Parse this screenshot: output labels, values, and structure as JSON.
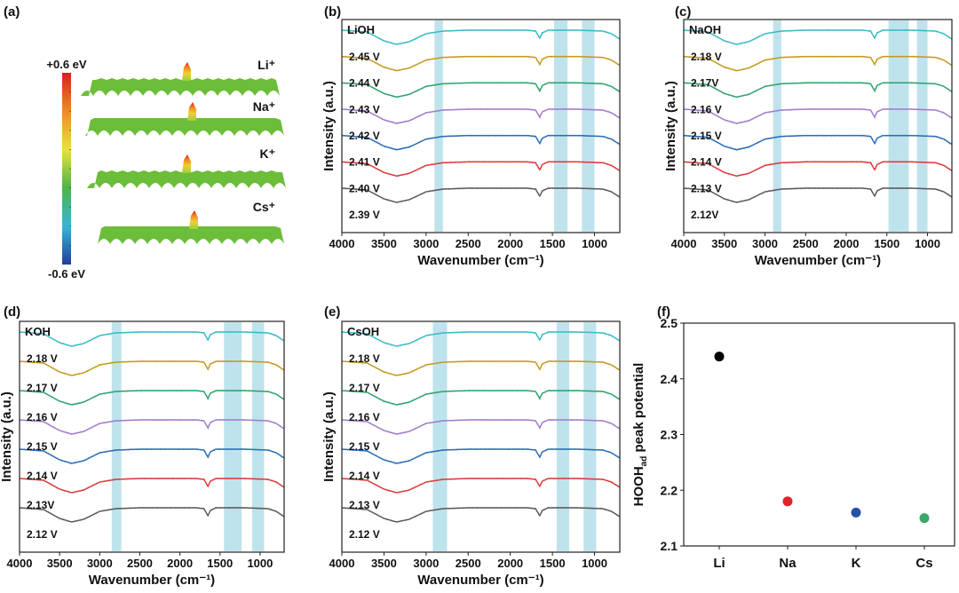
{
  "chart_data": [
    {
      "panel": "(a)",
      "type": "surface",
      "colorbar": {
        "max_label": "+0.6 eV",
        "min_label": "-0.6 eV",
        "colors": [
          "#1e3f9c",
          "#38b6d6",
          "#4cb648",
          "#e8e23a",
          "#f08a22",
          "#d9201f"
        ]
      },
      "series": [
        {
          "name": "Li",
          "label": "Li⁺"
        },
        {
          "name": "Na",
          "label": "Na⁺"
        },
        {
          "name": "K",
          "label": "K⁺"
        },
        {
          "name": "Cs",
          "label": "Cs⁺"
        }
      ]
    },
    {
      "panel": "(b)",
      "type": "line",
      "title": "LiOH",
      "xlabel": "Wavenumber (cm⁻¹)",
      "ylabel": "Intensity (a.u.)",
      "xlim": [
        4000,
        700
      ],
      "xticks": [
        "4000",
        "3500",
        "3000",
        "2500",
        "2000",
        "1500",
        "1000"
      ],
      "bands": [
        [
          2900,
          2800
        ],
        [
          1480,
          1320
        ],
        [
          1150,
          1000
        ]
      ],
      "series": [
        "2.39 V",
        "2.40 V",
        "2.41 V",
        "2.42 V",
        "2.43 V",
        "2.44 V",
        "2.45 V"
      ]
    },
    {
      "panel": "(c)",
      "type": "line",
      "title": "NaOH",
      "xlabel": "Wavenumber (cm⁻¹)",
      "ylabel": "Intensity (a.u.)",
      "xlim": [
        4000,
        700
      ],
      "xticks": [
        "4000",
        "3500",
        "3000",
        "2500",
        "2000",
        "1500",
        "1000"
      ],
      "bands": [
        [
          2900,
          2800
        ],
        [
          1480,
          1230
        ],
        [
          1130,
          1000
        ]
      ],
      "series": [
        "2.12V",
        "2.13 V",
        "2.14 V",
        "2.15 V",
        "2.16 V",
        "2.17V",
        "2.18 V"
      ]
    },
    {
      "panel": "(d)",
      "type": "line",
      "title": "KOH",
      "xlabel": "Wavenumber (cm⁻¹)",
      "ylabel": "Intensity (a.u.)",
      "xlim": [
        4000,
        700
      ],
      "xticks": [
        "4000",
        "3500",
        "3000",
        "2500",
        "2000",
        "1500",
        "1000"
      ],
      "bands": [
        [
          2850,
          2730
        ],
        [
          1450,
          1230
        ],
        [
          1100,
          950
        ]
      ],
      "series": [
        "2.12 V",
        "2.13V",
        "2.14 V",
        "2.15 V",
        "2.16 V",
        "2.17 V",
        "2.18 V"
      ]
    },
    {
      "panel": "(e)",
      "type": "line",
      "title": "CsOH",
      "xlabel": "Wavenumber (cm⁻¹)",
      "ylabel": "Intensity (a.u.)",
      "xlim": [
        4000,
        700
      ],
      "xticks": [
        "4000",
        "3500",
        "3000",
        "2500",
        "2000",
        "1500",
        "1000"
      ],
      "bands": [
        [
          2920,
          2750
        ],
        [
          1450,
          1300
        ],
        [
          1130,
          980
        ]
      ],
      "series": [
        "2.12 V",
        "2.13 V",
        "2.14 V",
        "2.15 V",
        "2.16 V",
        "2.17 V",
        "2.18 V"
      ]
    },
    {
      "panel": "(f)",
      "type": "scatter",
      "ylabel": "HOOH",
      "ylabel_sub": "ad",
      "ylabel_rest": " peak potential",
      "ylim": [
        2.1,
        2.5
      ],
      "yticks": [
        "2.1",
        "2.2",
        "2.3",
        "2.4",
        "2.5"
      ],
      "categories": [
        "Li",
        "Na",
        "K",
        "Cs"
      ],
      "values": [
        2.44,
        2.18,
        2.16,
        2.15
      ],
      "colors": [
        "#000000",
        "#e0232a",
        "#2550a8",
        "#3aa868"
      ]
    }
  ],
  "spectrum_profile": {
    "wavenumber": [
      4000,
      3700,
      3500,
      3350,
      3200,
      3000,
      2800,
      2500,
      1800,
      1700,
      1650,
      1620,
      1550,
      1200,
      900,
      800,
      700
    ],
    "relative_intensity": [
      1.0,
      0.9,
      0.4,
      0.2,
      0.35,
      0.8,
      0.95,
      1.0,
      1.0,
      0.95,
      0.55,
      0.85,
      1.0,
      1.0,
      0.95,
      0.8,
      0.5
    ]
  },
  "series_colors": [
    "#5a5a5a",
    "#d93b3b",
    "#2b6cb5",
    "#a07ccb",
    "#2ea36a",
    "#c49a1e",
    "#3bbac6"
  ],
  "band_color": "#bfe3ec"
}
